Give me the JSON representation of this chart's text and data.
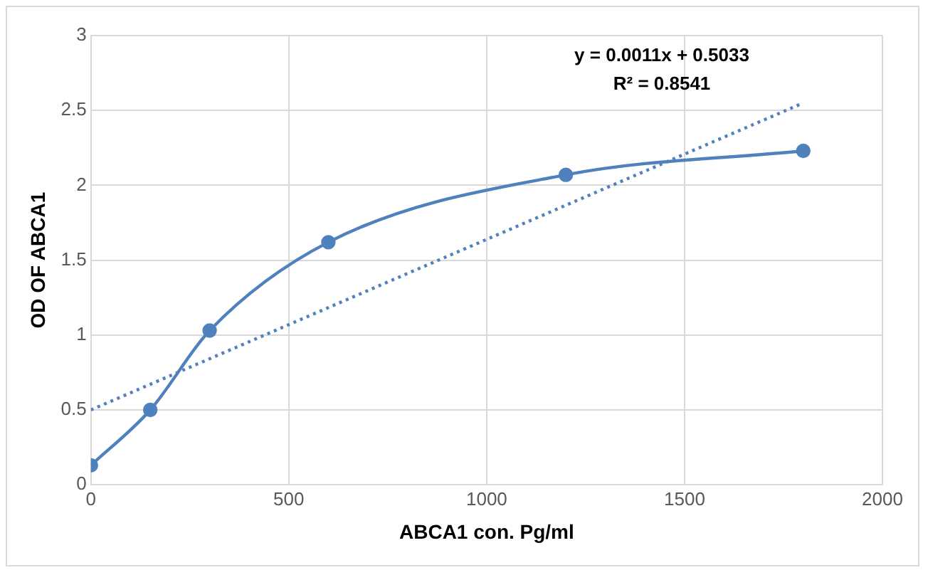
{
  "chart_data": {
    "type": "line",
    "xlabel": "ABCA1 con. Pg/ml",
    "ylabel": "OD OF ABCA1",
    "annotations": [
      "y = 0.0011x + 0.5033",
      "R² = 0.8541"
    ],
    "series": [
      {
        "color": "#4f81bd",
        "x": [
          0,
          150,
          300,
          600,
          1200,
          1800
        ],
        "values": [
          0.13,
          0.5,
          1.03,
          1.62,
          2.07,
          2.23
        ],
        "marker": "circle",
        "line_style": "solid"
      },
      {
        "color": "#4f81bd",
        "x": [
          0,
          1800
        ],
        "values": [
          0.5,
          2.55
        ],
        "marker": "none",
        "line_style": "dotted"
      }
    ],
    "xlim": [
      0,
      2000
    ],
    "xticks": [
      0,
      500,
      1000,
      1500,
      2000
    ],
    "ylim": [
      0,
      3
    ],
    "yticks": [
      0,
      0.5,
      1,
      1.5,
      2,
      2.5,
      3
    ],
    "grid": true,
    "legend": false
  }
}
